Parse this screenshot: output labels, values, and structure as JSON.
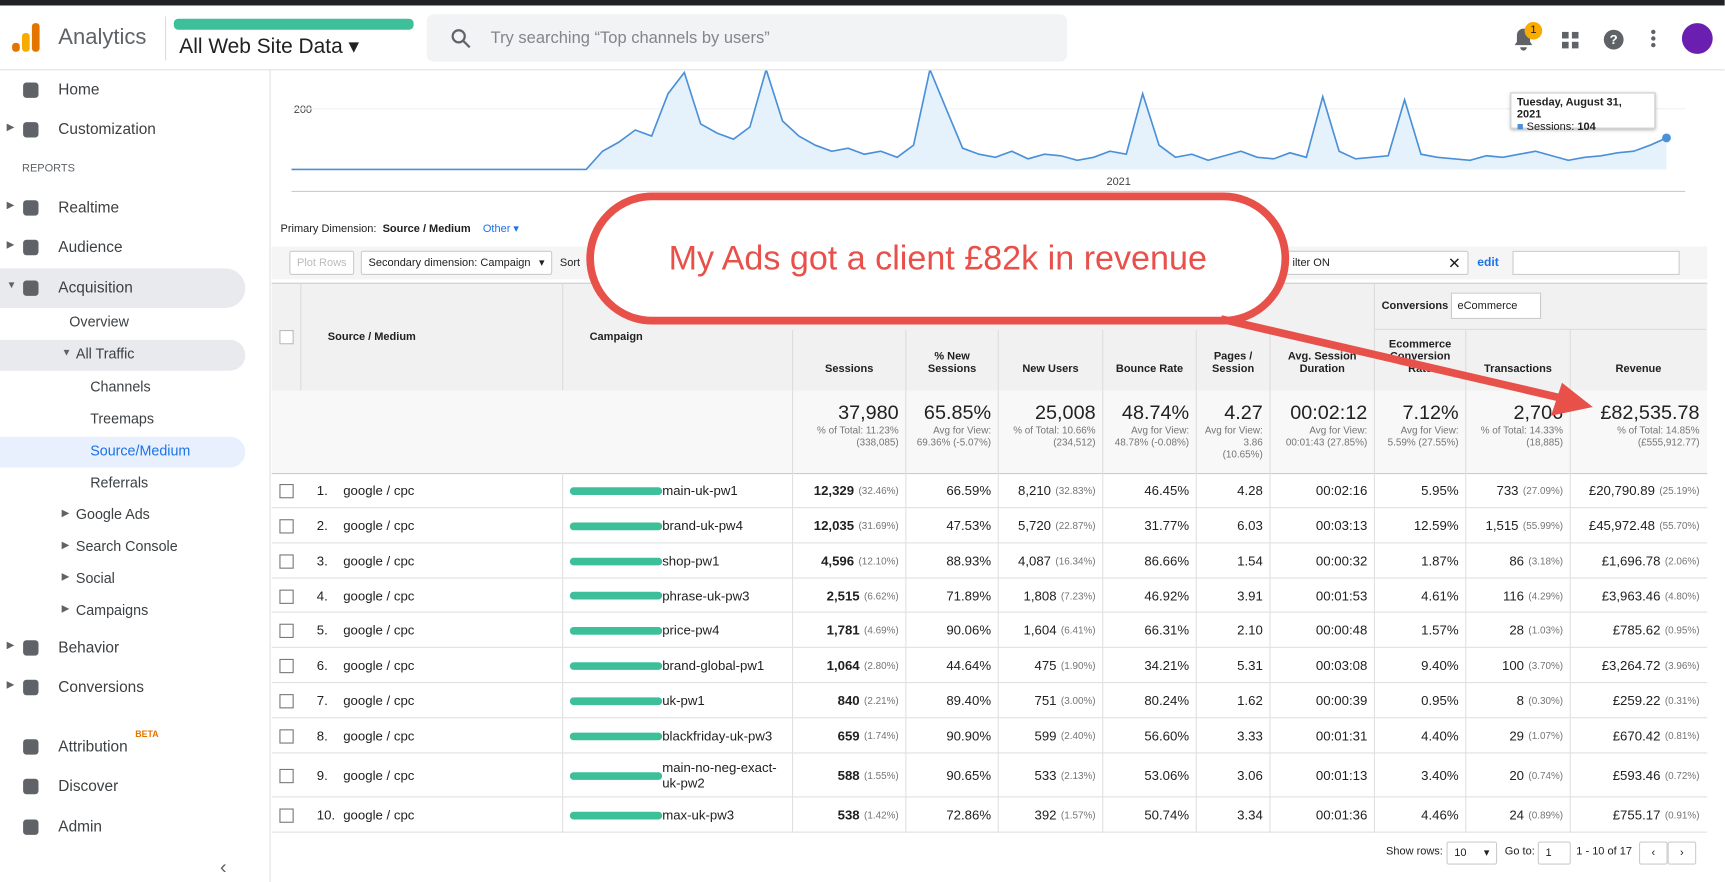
{
  "header": {
    "product": "Analytics",
    "property": "All Web Site Data",
    "search_placeholder": "Try searching “Top channels by users”",
    "notification_count": "1"
  },
  "sidebar": {
    "items": [
      "Home",
      "Customization",
      "REPORTS",
      "Realtime",
      "Audience",
      "Acquisition",
      "Overview",
      "All Traffic",
      "Channels",
      "Treemaps",
      "Source/Medium",
      "Referrals",
      "Google Ads",
      "Search Console",
      "Social",
      "Campaigns",
      "Behavior",
      "Conversions",
      "Attribution",
      "Discover",
      "Admin"
    ],
    "beta": "BETA"
  },
  "chart_data": {
    "type": "line",
    "color": "#4a90d9",
    "ylim": [
      0,
      327
    ],
    "yticks": [
      200
    ],
    "xlabel": "2021",
    "values": [
      0,
      0,
      0,
      0,
      0,
      0,
      0,
      0,
      0,
      0,
      0,
      0,
      0,
      0,
      0,
      0,
      0,
      0,
      0,
      60,
      90,
      130,
      110,
      250,
      320,
      150,
      120,
      100,
      140,
      330,
      160,
      110,
      80,
      60,
      70,
      50,
      60,
      40,
      80,
      330,
      200,
      70,
      50,
      40,
      60,
      35,
      50,
      45,
      30,
      40,
      60,
      50,
      250,
      80,
      40,
      50,
      30,
      45,
      60,
      40,
      35,
      55,
      40,
      240,
      60,
      35,
      40,
      45,
      230,
      50,
      40,
      35,
      30,
      45,
      40,
      50,
      60,
      45,
      30,
      40,
      45,
      55,
      60,
      80,
      104
    ],
    "tooltip": {
      "date": "Tuesday, August 31, 2021",
      "label": "Sessions:",
      "value": "104"
    }
  },
  "annotation": "My Ads got a client £82k in revenue",
  "toolbar": {
    "primary_label": "Primary Dimension:",
    "primary_value": "Source / Medium",
    "other": "Other",
    "plot_rows": "Plot Rows",
    "secondary": "Secondary dimension: Campaign",
    "sort": "Sort",
    "filter": "ilter ON",
    "edit": "edit"
  },
  "table": {
    "group": "Conversions",
    "group_select": "eCommerce",
    "headers": [
      "Source / Medium",
      "Campaign",
      "Sessions",
      "% New Sessions",
      "New Users",
      "Bounce Rate",
      "Pages / Session",
      "Avg. Session Duration",
      "Ecommerce Conversion Rate",
      "Transactions",
      "Revenue"
    ],
    "totals": [
      [
        "37,980",
        "% of Total: 11.23% (338,085)"
      ],
      [
        "65.85%",
        "Avg for View: 69.36% (-5.07%)"
      ],
      [
        "25,008",
        "% of Total: 10.66% (234,512)"
      ],
      [
        "48.74%",
        "Avg for View: 48.78% (-0.08%)"
      ],
      [
        "4.27",
        "Avg for View: 3.86 (10.65%)"
      ],
      [
        "00:02:12",
        "Avg for View: 00:01:43 (27.85%)"
      ],
      [
        "7.12%",
        "Avg for View: 5.59% (27.55%)"
      ],
      [
        "2,706",
        "% of Total: 14.33% (18,885)"
      ],
      [
        "£82,535.78",
        "% of Total: 14.85% (£555,912.77)"
      ]
    ],
    "rows": [
      [
        "1.",
        "google / cpc",
        "main-uk-pw1",
        "12,329",
        "(32.46%)",
        "66.59%",
        "8,210",
        "(32.83%)",
        "46.45%",
        "4.28",
        "00:02:16",
        "5.95%",
        "733",
        "(27.09%)",
        "£20,790.89",
        "(25.19%)"
      ],
      [
        "2.",
        "google / cpc",
        "brand-uk-pw4",
        "12,035",
        "(31.69%)",
        "47.53%",
        "5,720",
        "(22.87%)",
        "31.77%",
        "6.03",
        "00:03:13",
        "12.59%",
        "1,515",
        "(55.99%)",
        "£45,972.48",
        "(55.70%)"
      ],
      [
        "3.",
        "google / cpc",
        "shop-pw1",
        "4,596",
        "(12.10%)",
        "88.93%",
        "4,087",
        "(16.34%)",
        "86.66%",
        "1.54",
        "00:00:32",
        "1.87%",
        "86",
        "(3.18%)",
        "£1,696.78",
        "(2.06%)"
      ],
      [
        "4.",
        "google / cpc",
        "phrase-uk-pw3",
        "2,515",
        "(6.62%)",
        "71.89%",
        "1,808",
        "(7.23%)",
        "46.92%",
        "3.91",
        "00:01:53",
        "4.61%",
        "116",
        "(4.29%)",
        "£3,963.46",
        "(4.80%)"
      ],
      [
        "5.",
        "google / cpc",
        "price-pw4",
        "1,781",
        "(4.69%)",
        "90.06%",
        "1,604",
        "(6.41%)",
        "66.31%",
        "2.10",
        "00:00:48",
        "1.57%",
        "28",
        "(1.03%)",
        "£785.62",
        "(0.95%)"
      ],
      [
        "6.",
        "google / cpc",
        "brand-global-pw1",
        "1,064",
        "(2.80%)",
        "44.64%",
        "475",
        "(1.90%)",
        "34.21%",
        "5.31",
        "00:03:08",
        "9.40%",
        "100",
        "(3.70%)",
        "£3,264.72",
        "(3.96%)"
      ],
      [
        "7.",
        "google / cpc",
        "uk-pw1",
        "840",
        "(2.21%)",
        "89.40%",
        "751",
        "(3.00%)",
        "80.24%",
        "1.62",
        "00:00:39",
        "0.95%",
        "8",
        "(0.30%)",
        "£259.22",
        "(0.31%)"
      ],
      [
        "8.",
        "google / cpc",
        "blackfriday-uk-pw3",
        "659",
        "(1.74%)",
        "90.90%",
        "599",
        "(2.40%)",
        "56.60%",
        "3.33",
        "00:01:31",
        "4.40%",
        "29",
        "(1.07%)",
        "£670.42",
        "(0.81%)"
      ],
      [
        "9.",
        "google / cpc",
        "main-no-neg-exact-uk-pw2",
        "588",
        "(1.55%)",
        "90.65%",
        "533",
        "(2.13%)",
        "53.06%",
        "3.06",
        "00:01:13",
        "3.40%",
        "20",
        "(0.74%)",
        "£593.46",
        "(0.72%)"
      ],
      [
        "10.",
        "google / cpc",
        "max-uk-pw3",
        "538",
        "(1.42%)",
        "72.86%",
        "392",
        "(1.57%)",
        "50.74%",
        "3.34",
        "00:01:36",
        "4.46%",
        "24",
        "(0.89%)",
        "£755.17",
        "(0.91%)"
      ]
    ]
  },
  "footer": {
    "show_rows": "Show rows:",
    "rows_value": "10",
    "goto": "Go to:",
    "goto_value": "1",
    "range": "1 - 10 of 17"
  }
}
